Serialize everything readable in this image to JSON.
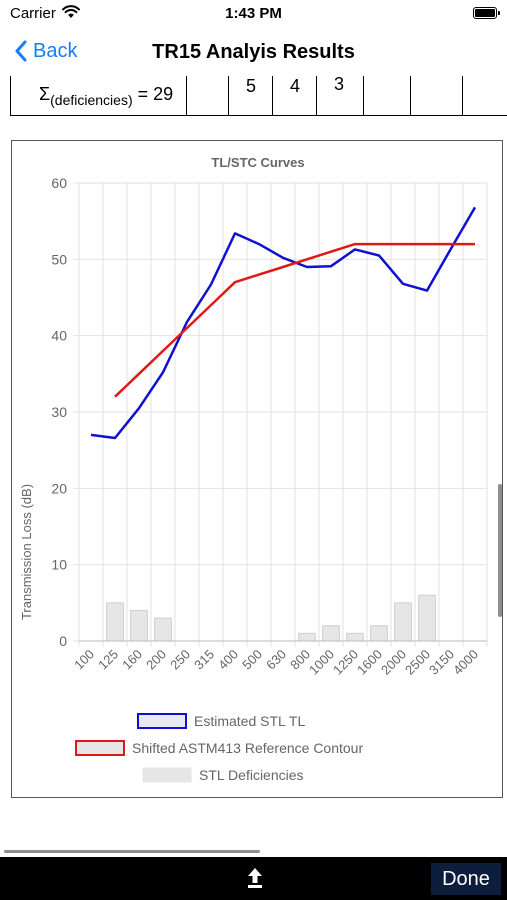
{
  "status_bar": {
    "carrier": "Carrier",
    "time": "1:43 PM"
  },
  "nav": {
    "back_label": "Back",
    "title": "TR15 Analyis Results"
  },
  "table_row": {
    "sum_prefix": "Σ",
    "sum_subscript": "(deficiencies)",
    "sum_value": "= 29",
    "cells": [
      "5",
      "4",
      "3"
    ]
  },
  "chart_data": {
    "type": "line",
    "title": "TL/STC Curves",
    "xlabel": "",
    "ylabel": "Transmission Loss (dB)",
    "ylim": [
      0,
      60
    ],
    "yticks": [
      "0",
      "10",
      "20",
      "30",
      "40",
      "50",
      "60"
    ],
    "categories": [
      "100",
      "125",
      "160",
      "200",
      "250",
      "315",
      "400",
      "500",
      "630",
      "800",
      "1000",
      "1250",
      "1600",
      "2000",
      "2500",
      "3150",
      "4000"
    ],
    "grid": true,
    "legend_placement": "bottom",
    "series": [
      {
        "name": "Estimated STL TL",
        "type": "line",
        "color": "#1010d0",
        "values": [
          27,
          26.6,
          30.5,
          35.2,
          41.8,
          46.7,
          53.4,
          52,
          50.2,
          49,
          49.1,
          51.3,
          50.5,
          46.8,
          45.9,
          51.4,
          56.8
        ]
      },
      {
        "name": "Shifted ASTM413 Reference Contour",
        "type": "line",
        "color": "#e01818",
        "values": [
          null,
          32,
          35,
          38,
          41,
          44,
          47,
          48,
          49,
          50,
          51,
          52,
          52,
          52,
          52,
          52,
          52
        ]
      },
      {
        "name": "STL Deficiencies",
        "type": "bar",
        "color": "#e6e6e6",
        "values": [
          0,
          5,
          4,
          3,
          0,
          0,
          0,
          0,
          0,
          1,
          2,
          1,
          2,
          5,
          6,
          0,
          0
        ]
      }
    ]
  },
  "toolbar": {
    "done_label": "Done"
  },
  "icons": {
    "back": "chevron-left-icon",
    "share": "share-icon",
    "wifi": "wifi-icon",
    "battery": "battery-icon"
  }
}
